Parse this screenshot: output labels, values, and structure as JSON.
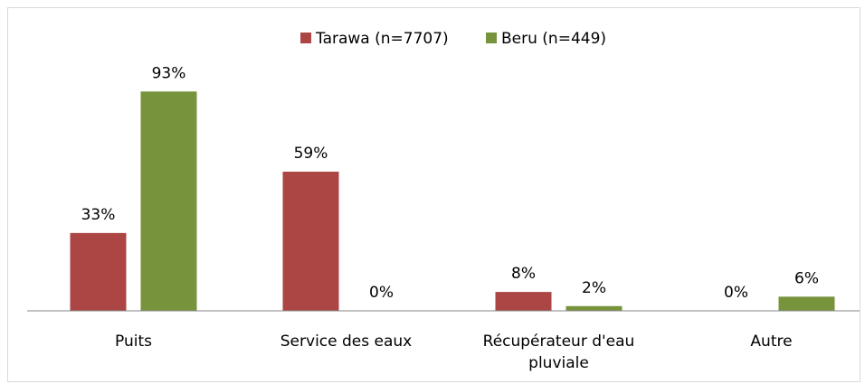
{
  "chart_data": {
    "type": "bar",
    "categories": [
      "Puits",
      "Service des eaux",
      "Récupérateur d'eau pluviale",
      "Autre"
    ],
    "series": [
      {
        "name": "Tarawa (n=7707)",
        "color": "#ab4644",
        "values": [
          33,
          59,
          8,
          0
        ],
        "value_labels": [
          "33%",
          "59%",
          "8%",
          "0%"
        ]
      },
      {
        "name": "Beru (n=449)",
        "color": "#77933c",
        "values": [
          93,
          0,
          2,
          6
        ],
        "value_labels": [
          "93%",
          "0%",
          "2%",
          "6%"
        ]
      }
    ],
    "ylim": [
      0,
      100
    ],
    "legend": "top"
  }
}
